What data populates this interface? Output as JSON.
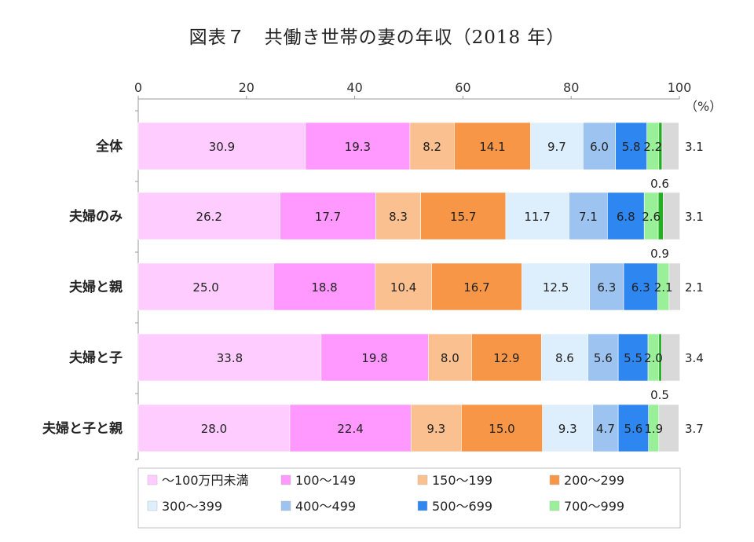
{
  "chart_data": {
    "type": "bar",
    "orientation": "horizontal-stacked",
    "title": "図表７　共働き世帯の妻の年収（2018 年）",
    "xlim": [
      0,
      100
    ],
    "xticks": [
      "0",
      "20",
      "40",
      "60",
      "80",
      "100"
    ],
    "unit_label": "（%）",
    "categories": [
      "全体",
      "夫婦のみ",
      "夫婦と親",
      "夫婦と子",
      "夫婦と子と親"
    ],
    "series": [
      {
        "name": "～100万円未満",
        "color": "#FFCCFF",
        "values": [
          30.9,
          26.2,
          25.0,
          33.8,
          28.0
        ]
      },
      {
        "name": "100～149",
        "color": "#FF99FF",
        "values": [
          19.3,
          17.7,
          18.8,
          19.8,
          22.4
        ]
      },
      {
        "name": "150～199",
        "color": "#FAC090",
        "values": [
          8.2,
          8.3,
          10.4,
          8.0,
          9.3
        ]
      },
      {
        "name": "200～299",
        "color": "#F79646",
        "values": [
          14.1,
          15.7,
          16.7,
          12.9,
          15.0
        ]
      },
      {
        "name": "300～399",
        "color": "#DDEEFC",
        "values": [
          9.7,
          11.7,
          12.5,
          8.6,
          9.3
        ]
      },
      {
        "name": "400～499",
        "color": "#9DC3F0",
        "values": [
          6.0,
          7.1,
          6.3,
          5.6,
          4.7
        ]
      },
      {
        "name": "500～699",
        "color": "#2E86F0",
        "values": [
          5.8,
          6.8,
          6.3,
          5.5,
          5.6
        ]
      },
      {
        "name": "700～999",
        "color": "#99F099",
        "values": [
          2.2,
          2.6,
          2.1,
          2.0,
          1.9
        ]
      },
      {
        "color": "#22B022",
        "values": [
          0.6,
          0.9,
          0.0,
          0.5,
          0.0
        ]
      },
      {
        "color": "#D9D9D9",
        "values": [
          3.1,
          3.1,
          2.1,
          3.4,
          3.7
        ]
      }
    ],
    "display_labels": [
      [
        "30.9",
        "19.3",
        "8.2",
        "14.1",
        "9.7",
        "6.0",
        "5.8",
        "2.2",
        "",
        ""
      ],
      [
        "26.2",
        "17.7",
        "8.3",
        "15.7",
        "11.7",
        "7.1",
        "6.8",
        "2.6",
        "",
        ""
      ],
      [
        "25.0",
        "18.8",
        "10.4",
        "16.7",
        "12.5",
        "6.3",
        "6.3",
        "2.1",
        "",
        ""
      ],
      [
        "33.8",
        "19.8",
        "8.0",
        "12.9",
        "8.6",
        "5.6",
        "5.5",
        "2.0",
        "",
        ""
      ],
      [
        "28.0",
        "22.4",
        "9.3",
        "15.0",
        "9.3",
        "4.7",
        "5.6",
        "1.9",
        "",
        ""
      ]
    ],
    "outside_labels": [
      "3.1",
      "3.1",
      "2.1",
      "3.4",
      "3.7"
    ],
    "below_labels": [
      "0.6",
      "0.9",
      "",
      "0.5",
      ""
    ],
    "legend_placement": "bottom",
    "legend_rows": [
      [
        "～100万円未満",
        "100～149",
        "150～199",
        "200～299"
      ],
      [
        "300～399",
        "400～499",
        "500～699",
        "700～999"
      ]
    ],
    "grid": false
  }
}
